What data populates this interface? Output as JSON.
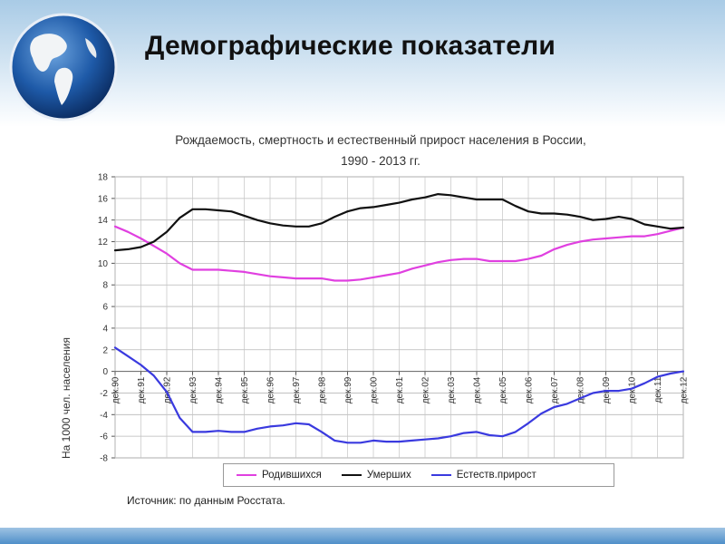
{
  "slide": {
    "title": "Демографические показатели"
  },
  "chart_data": {
    "type": "line",
    "title_lines": [
      "Рождаемость, смертность и естественный прирост населения в России,",
      "1990 -  2013 гг."
    ],
    "ylabel": "На 1000 чел. населения",
    "xlabel": "",
    "ylim": [
      -8,
      18
    ],
    "yticks": [
      -8,
      -6,
      -4,
      -2,
      0,
      2,
      4,
      6,
      8,
      10,
      12,
      14,
      16,
      18
    ],
    "xlim": [
      1990.92,
      2012.92
    ],
    "x_tick_labels": [
      "дек.90",
      "дек.91",
      "дек.92",
      "дек.93",
      "дек.94",
      "дек.95",
      "дек.96",
      "дек.97",
      "дек.98",
      "дек.99",
      "дек.00",
      "дек.01",
      "дек.02",
      "дек.03",
      "дек.04",
      "дек.05",
      "дек.06",
      "дек.07",
      "дек.08",
      "дек.09",
      "дек.10",
      "дек.11",
      "дек.12"
    ],
    "grid": true,
    "legend_position": "bottom",
    "x": [
      1990.92,
      1991.42,
      1991.92,
      1992.42,
      1992.92,
      1993.42,
      1993.92,
      1994.42,
      1994.92,
      1995.42,
      1995.92,
      1996.42,
      1996.92,
      1997.42,
      1997.92,
      1998.42,
      1998.92,
      1999.42,
      1999.92,
      2000.42,
      2000.92,
      2001.42,
      2001.92,
      2002.42,
      2002.92,
      2003.42,
      2003.92,
      2004.42,
      2004.92,
      2005.42,
      2005.92,
      2006.42,
      2006.92,
      2007.42,
      2007.92,
      2008.42,
      2008.92,
      2009.42,
      2009.92,
      2010.42,
      2010.92,
      2011.42,
      2011.92,
      2012.42,
      2012.92
    ],
    "series": [
      {
        "name": "Родившихся",
        "color": "#e040e0",
        "values": [
          13.4,
          12.9,
          12.3,
          11.6,
          10.9,
          10.0,
          9.4,
          9.4,
          9.4,
          9.3,
          9.2,
          9.0,
          8.8,
          8.7,
          8.6,
          8.6,
          8.6,
          8.4,
          8.4,
          8.5,
          8.7,
          8.9,
          9.1,
          9.5,
          9.8,
          10.1,
          10.3,
          10.4,
          10.4,
          10.2,
          10.2,
          10.2,
          10.4,
          10.7,
          11.3,
          11.7,
          12.0,
          12.2,
          12.3,
          12.4,
          12.5,
          12.5,
          12.7,
          13.0,
          13.3
        ]
      },
      {
        "name": "Умерших",
        "color": "#111111",
        "values": [
          11.2,
          11.3,
          11.5,
          12.0,
          12.9,
          14.2,
          15.0,
          15.0,
          14.9,
          14.8,
          14.4,
          14.0,
          13.7,
          13.5,
          13.4,
          13.4,
          13.7,
          14.3,
          14.8,
          15.1,
          15.2,
          15.4,
          15.6,
          15.9,
          16.1,
          16.4,
          16.3,
          16.1,
          15.9,
          15.9,
          15.9,
          15.3,
          14.8,
          14.6,
          14.6,
          14.5,
          14.3,
          14.0,
          14.1,
          14.3,
          14.1,
          13.6,
          13.4,
          13.2,
          13.3
        ]
      },
      {
        "name": "Естеств.прирост",
        "color": "#3a3adf",
        "values": [
          2.2,
          1.4,
          0.6,
          -0.4,
          -1.9,
          -4.3,
          -5.6,
          -5.6,
          -5.5,
          -5.6,
          -5.6,
          -5.3,
          -5.1,
          -5.0,
          -4.8,
          -4.9,
          -5.6,
          -6.4,
          -6.6,
          -6.6,
          -6.4,
          -6.5,
          -6.5,
          -6.4,
          -6.3,
          -6.2,
          -6.0,
          -5.7,
          -5.6,
          -5.9,
          -6.0,
          -5.6,
          -4.8,
          -3.9,
          -3.3,
          -3.0,
          -2.5,
          -2.0,
          -1.8,
          -1.8,
          -1.6,
          -1.1,
          -0.5,
          -0.2,
          0.0
        ]
      }
    ]
  },
  "source_note": "Источник: по данным Росстата."
}
